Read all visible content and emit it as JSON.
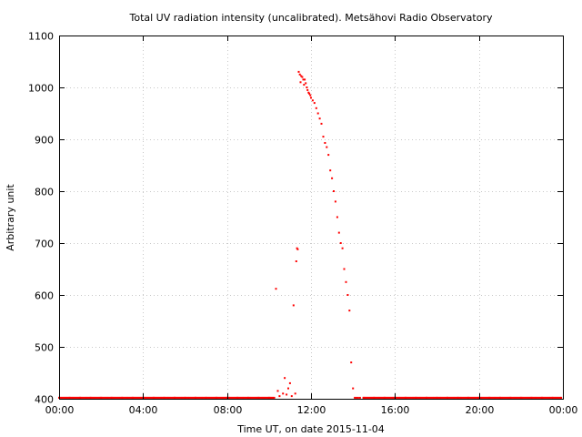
{
  "chart_data": {
    "type": "scatter",
    "title": "Total UV radiation intensity (uncalibrated). Metsähovi Radio Observatory",
    "xlabel": "Time UT, on date 2015-11-04",
    "ylabel": "Arbitrary unit",
    "xlim": [
      "00:00",
      "24:00"
    ],
    "ylim": [
      400,
      1100
    ],
    "x_ticks": [
      "00:00",
      "04:00",
      "08:00",
      "12:00",
      "16:00",
      "20:00",
      "00:00"
    ],
    "y_ticks": [
      400,
      500,
      600,
      700,
      800,
      900,
      1000,
      1100
    ],
    "grid": true,
    "marker_color": "#ff0000",
    "series": [
      {
        "x": [
          "00:00",
          "00:30",
          "01:00",
          "01:30",
          "02:00",
          "02:30",
          "03:00",
          "03:30",
          "04:00",
          "04:30",
          "05:00",
          "05:30",
          "06:00",
          "06:30",
          "07:00",
          "07:30",
          "08:00",
          "08:30",
          "09:00",
          "09:30",
          "10:00",
          "10:20",
          "10:25",
          "10:30",
          "10:40",
          "10:45",
          "10:50",
          "10:55",
          "11:00",
          "11:05",
          "11:10",
          "11:15",
          "11:18",
          "11:20",
          "11:22",
          "11:25",
          "11:28",
          "11:30",
          "11:32",
          "11:35",
          "11:38",
          "11:40",
          "11:42",
          "11:45",
          "11:48",
          "11:50",
          "11:53",
          "11:55",
          "11:58",
          "12:00",
          "12:05",
          "12:10",
          "12:15",
          "12:20",
          "12:25",
          "12:30",
          "12:35",
          "12:40",
          "12:45",
          "12:50",
          "12:55",
          "13:00",
          "13:05",
          "13:10",
          "13:15",
          "13:20",
          "13:25",
          "13:30",
          "13:35",
          "13:40",
          "13:45",
          "13:50",
          "13:55",
          "14:00",
          "14:05",
          "14:10",
          "14:15",
          "14:20",
          "14:30",
          "15:00",
          "15:30",
          "16:00",
          "16:30",
          "17:00",
          "17:30",
          "18:00",
          "18:30",
          "19:00",
          "19:30",
          "20:00",
          "20:30",
          "21:00",
          "21:30",
          "22:00",
          "22:30",
          "23:00",
          "23:30",
          "23:55"
        ],
        "y": [
          402,
          402,
          402,
          402,
          402,
          402,
          402,
          402,
          402,
          402,
          402,
          402,
          402,
          402,
          402,
          402,
          402,
          402,
          402,
          402,
          402,
          612,
          415,
          405,
          410,
          440,
          408,
          420,
          430,
          405,
          580,
          410,
          665,
          690,
          688,
          1030,
          1025,
          1010,
          1022,
          1020,
          1015,
          1005,
          1015,
          1008,
          1000,
          995,
          990,
          988,
          985,
          980,
          975,
          970,
          960,
          950,
          940,
          930,
          905,
          893,
          885,
          870,
          840,
          825,
          800,
          780,
          750,
          720,
          700,
          690,
          650,
          625,
          600,
          570,
          470,
          420,
          402,
          402,
          402,
          402,
          402,
          402,
          402,
          402,
          402,
          402,
          402,
          402,
          402,
          402,
          402,
          402,
          402,
          402,
          402,
          402,
          402,
          402,
          402,
          402
        ]
      }
    ]
  }
}
